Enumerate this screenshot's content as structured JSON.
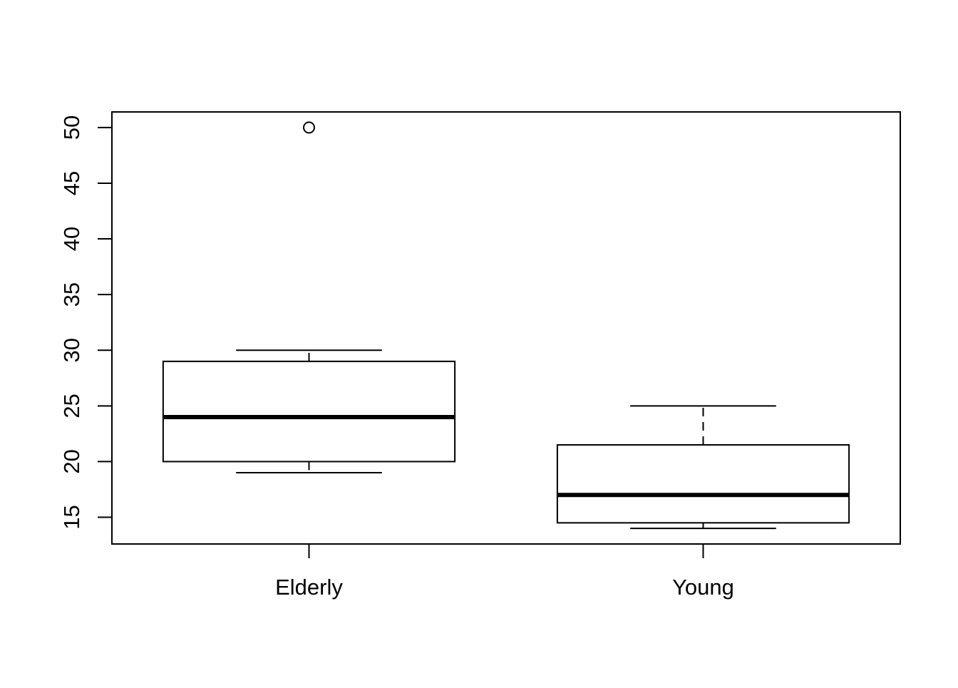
{
  "chart_data": {
    "type": "boxplot",
    "title": "",
    "xlabel": "",
    "ylabel": "",
    "categories": [
      "Elderly",
      "Young"
    ],
    "boxes": [
      {
        "category": "Elderly",
        "whisker_low": 19,
        "q1": 20,
        "median": 24,
        "q3": 29,
        "whisker_high": 30,
        "outliers": [
          50
        ]
      },
      {
        "category": "Young",
        "whisker_low": 14,
        "q1": 14.5,
        "median": 17,
        "q3": 21.5,
        "whisker_high": 25,
        "outliers": []
      }
    ],
    "ylim": [
      12.6,
      51.4
    ],
    "yticks": [
      15,
      20,
      25,
      30,
      35,
      40,
      45,
      50
    ],
    "ytick_labels": [
      "15",
      "20",
      "25",
      "30",
      "35",
      "40",
      "45",
      "50"
    ],
    "grid": false,
    "legend": "none",
    "colors": {
      "line": "#000000",
      "box_fill": "#ffffff",
      "background": "#ffffff"
    }
  }
}
